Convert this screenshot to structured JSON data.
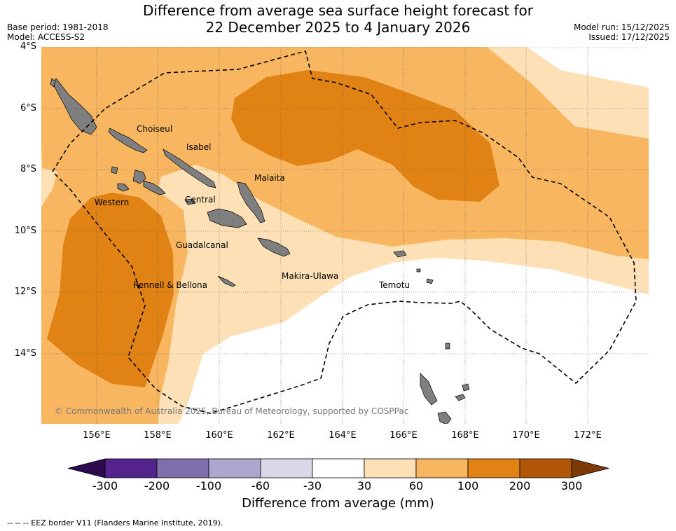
{
  "header": {
    "title_line1": "Difference from average sea surface height forecast for",
    "title_line2": "22 December 2025 to 4 January 2026",
    "base_period": "Base period: 1981-2018",
    "model": "Model: ACCESS-S2",
    "model_run": "Model run: 15/12/2025",
    "issued": "Issued: 17/12/2025"
  },
  "map": {
    "lat_ticks": [
      "4°S",
      "6°S",
      "8°S",
      "10°S",
      "12°S",
      "14°S"
    ],
    "lon_ticks": [
      "156°E",
      "158°E",
      "160°E",
      "162°E",
      "164°E",
      "166°E",
      "168°E",
      "170°E",
      "172°E"
    ],
    "places": {
      "choiseul": "Choiseul",
      "isabel": "Isabel",
      "malaita": "Malaita",
      "central": "Central",
      "western": "Western",
      "guadalcanal": "Guadalcanal",
      "makira_ulawa": "Makira-Ulawa",
      "rennell_bellona": "Rennell & Bellona",
      "temotu": "Temotu"
    },
    "copyright": "© Commonwealth of Australia 2025, Bureau of Meteorology, supported by COSPPac"
  },
  "colorbar": {
    "bins": [
      {
        "from": -300,
        "to": -200,
        "color": "#54238b"
      },
      {
        "from": -200,
        "to": -100,
        "color": "#7e70aa"
      },
      {
        "from": -100,
        "to": -60,
        "color": "#aea6cf"
      },
      {
        "from": -60,
        "to": -30,
        "color": "#d8d8e9"
      },
      {
        "from": -30,
        "to": 30,
        "color": "#ffffff"
      },
      {
        "from": 30,
        "to": 60,
        "color": "#fde0b5"
      },
      {
        "from": 60,
        "to": 100,
        "color": "#f9b661"
      },
      {
        "from": 100,
        "to": 200,
        "color": "#e08314"
      },
      {
        "from": 200,
        "to": 300,
        "color": "#b25607"
      }
    ],
    "under_color": "#2d0a4d",
    "over_color": "#7e3a06",
    "labels": [
      "-300",
      "-200",
      "-100",
      "-60",
      "-30",
      "30",
      "60",
      "100",
      "200",
      "300"
    ],
    "title": "Difference from average (mm)"
  },
  "footer": {
    "eez_legend": "--  --  -- EEZ border V11 (Flanders Marine Institute, 2019)."
  }
}
